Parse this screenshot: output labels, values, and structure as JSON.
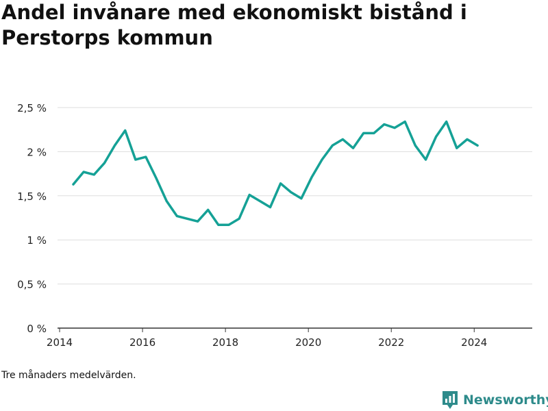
{
  "title": "Andel invånare med ekonomiskt bistånd i Perstorps kommun",
  "note": "Tre månaders medelvärden.",
  "brand": {
    "name": "Newsworthy",
    "icon": "newsworthy-logo-icon",
    "color": "#2e8b8b"
  },
  "chart_data": {
    "type": "line",
    "title": "Andel invånare med ekonomiskt bistånd i Perstorps kommun",
    "xlabel": "",
    "ylabel": "",
    "xlim": [
      2013.95,
      2025.4
    ],
    "ylim": [
      0,
      2.5
    ],
    "yticks": [
      0,
      0.5,
      1,
      1.5,
      2,
      2.5
    ],
    "ytick_labels": [
      "0 %",
      "0,5 %",
      "1 %",
      "1,5 %",
      "2 %",
      "2,5 %"
    ],
    "xticks": [
      2014,
      2016,
      2018,
      2020,
      2022,
      2024
    ],
    "xtick_labels": [
      "2014",
      "2016",
      "2018",
      "2020",
      "2022",
      "2024"
    ],
    "grid": true,
    "series": [
      {
        "color": "#15a196",
        "x": [
          2014.33,
          2014.58,
          2014.83,
          2015.08,
          2015.33,
          2015.58,
          2015.83,
          2016.08,
          2016.33,
          2016.58,
          2016.83,
          2017.08,
          2017.33,
          2017.58,
          2017.83,
          2018.08,
          2018.33,
          2018.58,
          2018.83,
          2019.08,
          2019.33,
          2019.58,
          2019.83,
          2020.08,
          2020.33,
          2020.58,
          2020.83,
          2021.08,
          2021.33,
          2021.58,
          2021.83,
          2022.08,
          2022.33,
          2022.58,
          2022.83,
          2023.08,
          2023.33,
          2023.58,
          2023.83,
          2024.08
        ],
        "y": [
          1.63,
          1.77,
          1.74,
          1.87,
          2.07,
          2.24,
          1.91,
          1.94,
          1.7,
          1.44,
          1.27,
          1.24,
          1.21,
          1.34,
          1.17,
          1.17,
          1.24,
          1.51,
          1.44,
          1.37,
          1.64,
          1.54,
          1.47,
          1.71,
          1.91,
          2.07,
          2.14,
          2.04,
          2.21,
          2.21,
          2.31,
          2.27,
          2.34,
          2.07,
          1.91,
          2.17,
          2.34,
          2.04,
          2.14,
          2.07
        ]
      }
    ]
  }
}
